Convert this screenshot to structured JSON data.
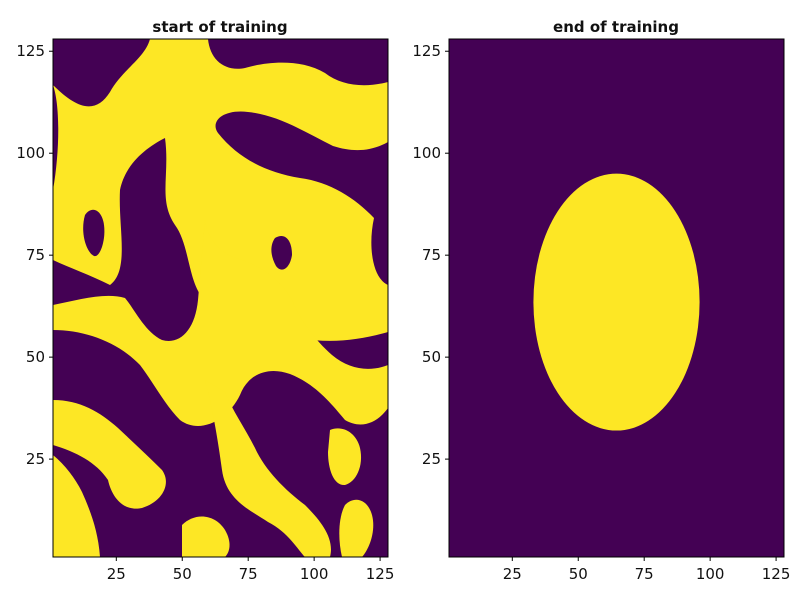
{
  "colors": {
    "low": "#440154",
    "high": "#fde725",
    "frame": "#000000"
  },
  "chart_data": [
    {
      "type": "heatmap",
      "title": "start of training",
      "xlim": [
        1,
        128
      ],
      "ylim": [
        1,
        128
      ],
      "xticks": [
        25,
        50,
        75,
        100,
        125
      ],
      "yticks": [
        25,
        50,
        75,
        100,
        125
      ],
      "colormap": [
        "#440154",
        "#fde725"
      ],
      "values": "binary mask, organic blob pattern (random noise structure)"
    },
    {
      "type": "heatmap",
      "title": "end of training",
      "xlim": [
        1,
        128
      ],
      "ylim": [
        1,
        128
      ],
      "xticks": [
        25,
        50,
        75,
        100,
        125
      ],
      "yticks": [
        25,
        50,
        75,
        100,
        125
      ],
      "colormap": [
        "#440154",
        "#fde725"
      ],
      "ellipse": {
        "center_x": 64.5,
        "center_y": 63.5,
        "radius_x": 31.5,
        "radius_y": 31.5
      }
    }
  ]
}
